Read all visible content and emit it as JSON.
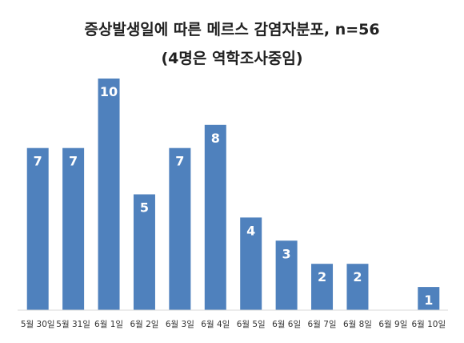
{
  "chart_data": {
    "type": "bar",
    "title": "증상발생일에 따른 메르스 감염자분포, n=56",
    "subtitle": "(4명은 역학조사중임)",
    "categories": [
      "5월 30일",
      "5월 31일",
      "6월 1일",
      "6월 2일",
      "6월 3일",
      "6월 4일",
      "6월 5일",
      "6월 6일",
      "6월 7일",
      "6월 8일",
      "6월 9일",
      "6월 10일"
    ],
    "values": [
      7,
      7,
      10,
      5,
      7,
      8,
      4,
      3,
      2,
      2,
      0,
      1
    ],
    "data_labels": [
      "7",
      "7",
      "10",
      "5",
      "7",
      "8",
      "4",
      "3",
      "2",
      "2",
      "",
      "1"
    ],
    "ylim": [
      0,
      10
    ],
    "grid": false,
    "legend": "none",
    "bar_color": "#4f81bd"
  }
}
